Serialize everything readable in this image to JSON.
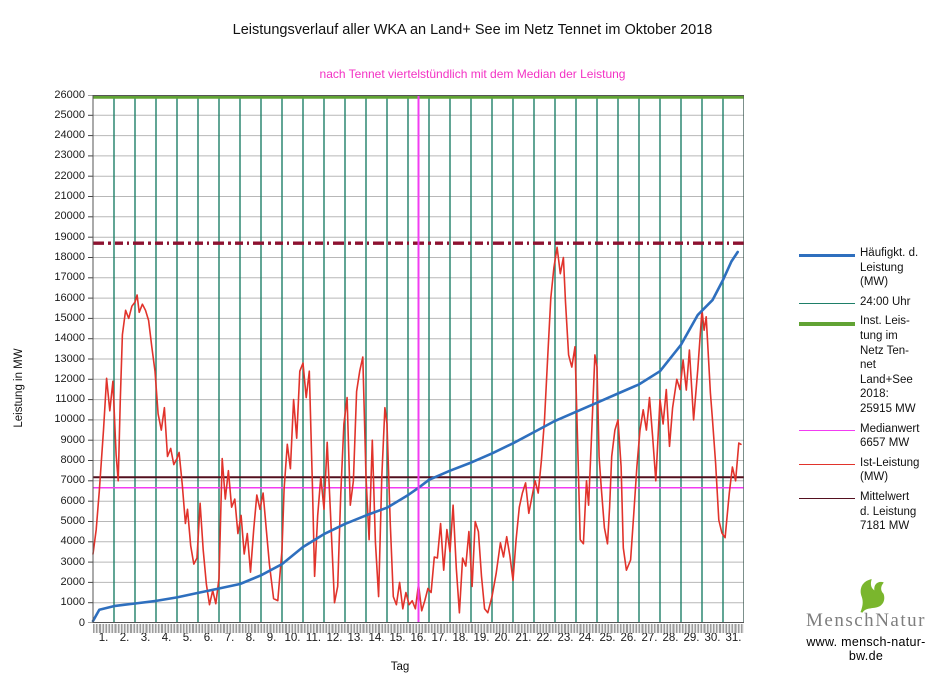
{
  "title": "Leistungsverlauf aller WKA an Land+ See im Netz Tennet im Oktober 2018",
  "subtitle": "nach Tennet viertelstündlich mit dem Median der Leistung",
  "colors": {
    "title": "#111111",
    "subtitle_magenta": "#f331c4",
    "blue": "#2e6fbe",
    "teal_daylines": "#1e7f68",
    "green_capacity": "#61a334",
    "magenta_median": "#f23cf2",
    "red_actual": "#e1332b",
    "maroon_mean": "#53101f",
    "darkred_dashdot": "#8d1230",
    "grid": "#b7b7b7",
    "frame": "#555555"
  },
  "axes": {
    "y_label": "Leistung in MW",
    "x_label": "Tag",
    "y_ticks": [
      0,
      1000,
      2000,
      3000,
      4000,
      5000,
      6000,
      7000,
      8000,
      9000,
      10000,
      11000,
      12000,
      13000,
      14000,
      15000,
      16000,
      17000,
      18000,
      19000,
      20000,
      21000,
      22000,
      23000,
      24000,
      25000,
      26000
    ],
    "x_ticks": [
      "1.",
      "2.",
      "3.",
      "4.",
      "5.",
      "6.",
      "7.",
      "8.",
      "9.",
      "10.",
      "11.",
      "12.",
      "13.",
      "14.",
      "15.",
      "16.",
      "17.",
      "18.",
      "19.",
      "20.",
      "21.",
      "22.",
      "23.",
      "24.",
      "25.",
      "26.",
      "27.",
      "28.",
      "29.",
      "30.",
      "31."
    ]
  },
  "legend": {
    "items": [
      {
        "id": "haeufigkeit",
        "label": "Häufigkt. d.\nLeistung\n(MW)",
        "color": "#2e6fbe",
        "thickness": 3
      },
      {
        "id": "mitternacht",
        "label": "24:00 Uhr",
        "color": "#1e7f68",
        "thickness": 1.3
      },
      {
        "id": "installierte-leistung",
        "label": "Inst. Leis-\ntung im\nNetz Ten-\nnet\nLand+See\n2018:\n25915 MW",
        "color": "#61a334",
        "thickness": 4
      },
      {
        "id": "medianwert",
        "label": "Medianwert\n6657 MW",
        "color": "#f23cf2",
        "thickness": 1.5
      },
      {
        "id": "ist-leistung",
        "label": "Ist-Leistung\n(MW)",
        "color": "#e1332b",
        "thickness": 1.5
      },
      {
        "id": "mittelwert",
        "label": "Mittelwert\nd. Leistung\n7181 MW",
        "color": "#53101f",
        "thickness": 1.5
      }
    ]
  },
  "logo": {
    "name_part1": "Mensch",
    "name_part2": "Natur",
    "url": "www. mensch-natur-bw.de",
    "leaf_color": "#7ab62d"
  },
  "chart_data": {
    "type": "line",
    "title": "Leistungsverlauf aller WKA an Land+ See im Netz Tennet im Oktober 2018",
    "subtitle": "nach Tennet viertelstündlich mit dem Median der Leistung",
    "xlabel": "Tag",
    "ylabel": "Leistung in MW",
    "ylim": [
      0,
      26000
    ],
    "xlim_days": [
      0,
      31
    ],
    "grid": true,
    "legend_position": "right",
    "reference_lines_horizontal": [
      {
        "id": "installed-capacity",
        "label": "Inst. Leistung im Netz Tennet Land+See 2018",
        "value": 25915,
        "color": "#61a334",
        "width": 4,
        "dash": "",
        "z": 1
      },
      {
        "id": "dashdot-max",
        "label": "",
        "value": 18700,
        "color": "#8d1230",
        "width": 3.4,
        "dash": "11 4 3 4 8 4 2 4",
        "z": 1
      },
      {
        "id": "mean",
        "label": "Mittelwert d. Leistung",
        "value": 7181,
        "color": "#53101f",
        "width": 2,
        "dash": "",
        "z": 0
      },
      {
        "id": "median",
        "label": "Medianwert",
        "value": 6657,
        "color": "#f23cf2",
        "width": 1.5,
        "dash": "",
        "z": 0
      }
    ],
    "reference_lines_vertical": {
      "day_boundaries_label": "24:00 Uhr",
      "day_boundaries": [
        1,
        2,
        3,
        4,
        5,
        6,
        7,
        8,
        9,
        10,
        11,
        12,
        13,
        14,
        15,
        16,
        17,
        18,
        19,
        20,
        21,
        22,
        23,
        24,
        25,
        26,
        27,
        28,
        29,
        30,
        31
      ],
      "median_position_day": 15.5,
      "median_position_color": "#f23cf2"
    },
    "series": [
      {
        "id": "ist-leistung",
        "name": "Ist-Leistung (MW)",
        "color": "#e1332b",
        "width": 1.6,
        "points": [
          [
            0,
            3400
          ],
          [
            0.15,
            4600
          ],
          [
            0.3,
            6500
          ],
          [
            0.5,
            9500
          ],
          [
            0.65,
            12050
          ],
          [
            0.8,
            10450
          ],
          [
            0.95,
            11900
          ],
          [
            1.1,
            8300
          ],
          [
            1.2,
            7000
          ],
          [
            1.3,
            11000
          ],
          [
            1.4,
            14200
          ],
          [
            1.55,
            15400
          ],
          [
            1.7,
            15000
          ],
          [
            1.85,
            15600
          ],
          [
            2.0,
            15800
          ],
          [
            2.1,
            16150
          ],
          [
            2.2,
            15300
          ],
          [
            2.35,
            15700
          ],
          [
            2.5,
            15400
          ],
          [
            2.65,
            14900
          ],
          [
            2.8,
            13600
          ],
          [
            2.95,
            12400
          ],
          [
            3.1,
            10300
          ],
          [
            3.25,
            9500
          ],
          [
            3.4,
            10600
          ],
          [
            3.55,
            8200
          ],
          [
            3.7,
            8600
          ],
          [
            3.85,
            7800
          ],
          [
            4.0,
            8100
          ],
          [
            4.1,
            8400
          ],
          [
            4.25,
            6800
          ],
          [
            4.4,
            4900
          ],
          [
            4.5,
            5600
          ],
          [
            4.65,
            3800
          ],
          [
            4.8,
            2900
          ],
          [
            4.95,
            3200
          ],
          [
            5.1,
            5900
          ],
          [
            5.25,
            3600
          ],
          [
            5.4,
            1900
          ],
          [
            5.55,
            900
          ],
          [
            5.7,
            1600
          ],
          [
            5.85,
            950
          ],
          [
            6.0,
            2200
          ],
          [
            6.15,
            8100
          ],
          [
            6.3,
            6100
          ],
          [
            6.45,
            7500
          ],
          [
            6.6,
            5700
          ],
          [
            6.75,
            6100
          ],
          [
            6.9,
            4400
          ],
          [
            7.05,
            5300
          ],
          [
            7.2,
            3400
          ],
          [
            7.35,
            4400
          ],
          [
            7.5,
            2500
          ],
          [
            7.65,
            4600
          ],
          [
            7.8,
            6300
          ],
          [
            7.95,
            5600
          ],
          [
            8.1,
            6400
          ],
          [
            8.25,
            4600
          ],
          [
            8.4,
            2900
          ],
          [
            8.6,
            1200
          ],
          [
            8.8,
            1100
          ],
          [
            9.0,
            3600
          ],
          [
            9.1,
            6600
          ],
          [
            9.25,
            8800
          ],
          [
            9.4,
            7600
          ],
          [
            9.55,
            11000
          ],
          [
            9.7,
            9100
          ],
          [
            9.85,
            12400
          ],
          [
            10.0,
            12800
          ],
          [
            10.15,
            11100
          ],
          [
            10.3,
            12400
          ],
          [
            10.45,
            6800
          ],
          [
            10.55,
            2300
          ],
          [
            10.7,
            5300
          ],
          [
            10.85,
            7200
          ],
          [
            11.0,
            5600
          ],
          [
            11.15,
            8900
          ],
          [
            11.3,
            5600
          ],
          [
            11.5,
            1000
          ],
          [
            11.65,
            1800
          ],
          [
            11.8,
            6400
          ],
          [
            11.95,
            9800
          ],
          [
            12.1,
            11100
          ],
          [
            12.25,
            5800
          ],
          [
            12.4,
            7000
          ],
          [
            12.55,
            11400
          ],
          [
            12.7,
            12400
          ],
          [
            12.85,
            13100
          ],
          [
            13.0,
            7200
          ],
          [
            13.15,
            4100
          ],
          [
            13.3,
            9000
          ],
          [
            13.45,
            4000
          ],
          [
            13.6,
            1300
          ],
          [
            13.75,
            7200
          ],
          [
            13.9,
            10600
          ],
          [
            14.0,
            9800
          ],
          [
            14.15,
            5000
          ],
          [
            14.3,
            1300
          ],
          [
            14.45,
            900
          ],
          [
            14.6,
            2000
          ],
          [
            14.75,
            700
          ],
          [
            14.9,
            1500
          ],
          [
            15.05,
            900
          ],
          [
            15.2,
            1100
          ],
          [
            15.35,
            700
          ],
          [
            15.5,
            1900
          ],
          [
            15.65,
            600
          ],
          [
            15.8,
            1100
          ],
          [
            15.95,
            1700
          ],
          [
            16.1,
            1500
          ],
          [
            16.25,
            3250
          ],
          [
            16.4,
            3200
          ],
          [
            16.55,
            4900
          ],
          [
            16.7,
            2600
          ],
          [
            16.85,
            4600
          ],
          [
            17.0,
            3500
          ],
          [
            17.15,
            5800
          ],
          [
            17.3,
            2700
          ],
          [
            17.45,
            500
          ],
          [
            17.6,
            3200
          ],
          [
            17.75,
            2800
          ],
          [
            17.9,
            4500
          ],
          [
            18.05,
            1800
          ],
          [
            18.2,
            5000
          ],
          [
            18.35,
            4500
          ],
          [
            18.5,
            2300
          ],
          [
            18.65,
            700
          ],
          [
            18.8,
            500
          ],
          [
            19.0,
            1300
          ],
          [
            19.2,
            2450
          ],
          [
            19.4,
            3950
          ],
          [
            19.55,
            3250
          ],
          [
            19.7,
            4250
          ],
          [
            19.85,
            3300
          ],
          [
            20.0,
            2100
          ],
          [
            20.15,
            4100
          ],
          [
            20.3,
            5700
          ],
          [
            20.45,
            6400
          ],
          [
            20.6,
            6900
          ],
          [
            20.75,
            5400
          ],
          [
            20.9,
            6200
          ],
          [
            21.05,
            7000
          ],
          [
            21.2,
            6400
          ],
          [
            21.35,
            8000
          ],
          [
            21.5,
            10000
          ],
          [
            21.65,
            13000
          ],
          [
            21.8,
            16000
          ],
          [
            21.95,
            17500
          ],
          [
            22.1,
            18500
          ],
          [
            22.25,
            17200
          ],
          [
            22.4,
            18000
          ],
          [
            22.5,
            15800
          ],
          [
            22.65,
            13200
          ],
          [
            22.8,
            12600
          ],
          [
            22.95,
            13600
          ],
          [
            23.1,
            8000
          ],
          [
            23.2,
            4100
          ],
          [
            23.35,
            3900
          ],
          [
            23.5,
            7000
          ],
          [
            23.6,
            5800
          ],
          [
            23.75,
            9500
          ],
          [
            23.9,
            13200
          ],
          [
            24.0,
            12600
          ],
          [
            24.1,
            8200
          ],
          [
            24.2,
            6700
          ],
          [
            24.35,
            4700
          ],
          [
            24.5,
            3900
          ],
          [
            24.6,
            5700
          ],
          [
            24.7,
            8200
          ],
          [
            24.85,
            9500
          ],
          [
            25.0,
            10000
          ],
          [
            25.15,
            7700
          ],
          [
            25.25,
            3700
          ],
          [
            25.4,
            2600
          ],
          [
            25.6,
            3100
          ],
          [
            25.75,
            5400
          ],
          [
            25.9,
            7700
          ],
          [
            26.05,
            9500
          ],
          [
            26.2,
            10500
          ],
          [
            26.35,
            9500
          ],
          [
            26.5,
            11100
          ],
          [
            26.65,
            9200
          ],
          [
            26.8,
            7000
          ],
          [
            27.0,
            11000
          ],
          [
            27.15,
            9800
          ],
          [
            27.3,
            11500
          ],
          [
            27.45,
            8700
          ],
          [
            27.6,
            10600
          ],
          [
            27.8,
            12000
          ],
          [
            27.95,
            11500
          ],
          [
            28.1,
            12950
          ],
          [
            28.25,
            11470
          ],
          [
            28.4,
            13440
          ],
          [
            28.6,
            10000
          ],
          [
            28.8,
            12500
          ],
          [
            29.0,
            15410
          ],
          [
            29.1,
            14420
          ],
          [
            29.2,
            15080
          ],
          [
            29.4,
            11330
          ],
          [
            29.5,
            10000
          ],
          [
            29.65,
            7880
          ],
          [
            29.8,
            5070
          ],
          [
            29.95,
            4430
          ],
          [
            30.1,
            4200
          ],
          [
            30.3,
            6400
          ],
          [
            30.45,
            7680
          ],
          [
            30.6,
            7000
          ],
          [
            30.75,
            8860
          ],
          [
            30.85,
            8800
          ]
        ]
      },
      {
        "id": "haeufigkeit",
        "name": "Häufigkt. d. Leistung (MW)",
        "color": "#2e6fbe",
        "width": 2.6,
        "points": [
          [
            0,
            100
          ],
          [
            0.3,
            650
          ],
          [
            1,
            830
          ],
          [
            2,
            960
          ],
          [
            3,
            1090
          ],
          [
            4,
            1260
          ],
          [
            5,
            1480
          ],
          [
            6,
            1700
          ],
          [
            7,
            1920
          ],
          [
            8,
            2350
          ],
          [
            9,
            2900
          ],
          [
            10,
            3740
          ],
          [
            11,
            4380
          ],
          [
            12,
            4880
          ],
          [
            13,
            5300
          ],
          [
            14,
            5680
          ],
          [
            15,
            6300
          ],
          [
            15.5,
            6657
          ],
          [
            16,
            7050
          ],
          [
            17,
            7500
          ],
          [
            18,
            7900
          ],
          [
            19,
            8350
          ],
          [
            20,
            8850
          ],
          [
            21,
            9400
          ],
          [
            22,
            9950
          ],
          [
            23,
            10400
          ],
          [
            24,
            10850
          ],
          [
            25,
            11300
          ],
          [
            26,
            11750
          ],
          [
            27,
            12400
          ],
          [
            28,
            13700
          ],
          [
            28.8,
            15170
          ],
          [
            29.5,
            15900
          ],
          [
            30,
            16890
          ],
          [
            30.4,
            17800
          ],
          [
            30.7,
            18270
          ]
        ]
      }
    ],
    "statistics": {
      "installed_capacity_mw": 25915,
      "median_mw": 6657,
      "mean_mw": 7181
    }
  }
}
